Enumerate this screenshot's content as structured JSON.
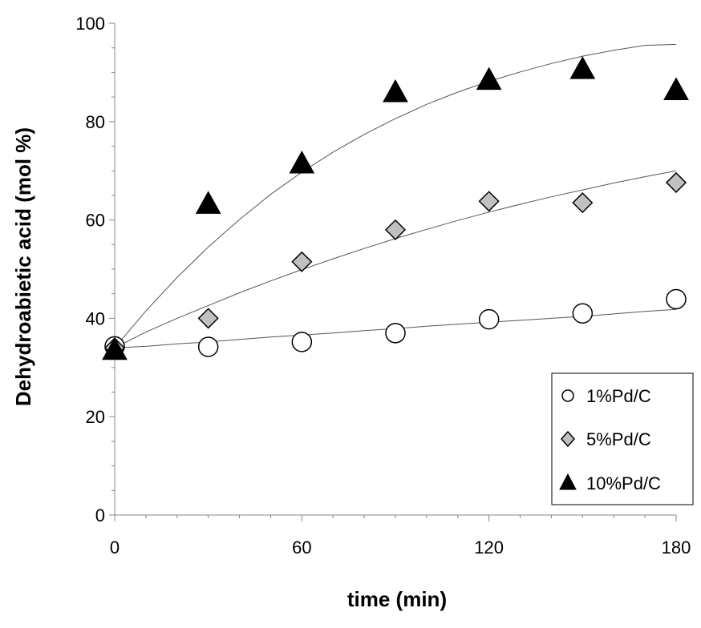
{
  "chart_data": {
    "type": "scatter",
    "xlabel": "time (min)",
    "ylabel": "Dehydroabietic acid (mol %)",
    "xlim": [
      0,
      180
    ],
    "ylim": [
      0,
      100
    ],
    "x_ticks": [
      0,
      60,
      120,
      180
    ],
    "y_ticks": [
      0,
      20,
      40,
      60,
      80,
      100
    ],
    "x_tick_labels": [
      "0",
      "60",
      "120",
      "180"
    ],
    "y_tick_labels": [
      "0",
      "20",
      "40",
      "60",
      "80",
      "100"
    ],
    "grid": false,
    "legend_position": "bottom-right",
    "series": [
      {
        "name": "1%Pd/C",
        "marker": "circle",
        "fill": "#ffffff",
        "x": [
          0,
          30,
          60,
          90,
          120,
          150,
          180
        ],
        "y": [
          34.3,
          34.2,
          35.2,
          37.0,
          39.8,
          41.0,
          43.9
        ],
        "fit_x": [
          0,
          10,
          20,
          30,
          40,
          50,
          60,
          70,
          80,
          90,
          100,
          110,
          120,
          130,
          140,
          150,
          160,
          170,
          180
        ],
        "fit_y": [
          34.0,
          34.3,
          34.8,
          35.2,
          35.7,
          36.2,
          36.6,
          37.0,
          37.5,
          37.9,
          38.4,
          38.8,
          39.2,
          39.6,
          40.0,
          40.4,
          40.9,
          41.4,
          41.8
        ]
      },
      {
        "name": "5%Pd/C",
        "marker": "diamond",
        "fill": "#c0c0c0",
        "x": [
          0,
          30,
          60,
          90,
          120,
          150,
          180
        ],
        "y": [
          34.0,
          40.0,
          51.5,
          58.0,
          63.8,
          63.5,
          67.6
        ],
        "fit_x": [
          0,
          10,
          20,
          30,
          40,
          50,
          60,
          70,
          80,
          90,
          100,
          110,
          120,
          130,
          140,
          150,
          160,
          170,
          180
        ],
        "fit_y": [
          34.0,
          37.2,
          40.0,
          42.6,
          45.2,
          47.6,
          49.9,
          52.1,
          54.2,
          56.2,
          58.1,
          59.9,
          61.6,
          63.2,
          64.7,
          66.1,
          67.5,
          68.8,
          70.0
        ]
      },
      {
        "name": "10%Pd/C",
        "marker": "triangle",
        "fill": "#000000",
        "x": [
          0,
          30,
          60,
          90,
          120,
          150,
          180
        ],
        "y": [
          33.6,
          63.3,
          71.5,
          86.0,
          88.5,
          90.7,
          86.4
        ],
        "fit_x": [
          0,
          10,
          20,
          30,
          40,
          50,
          60,
          70,
          80,
          90,
          100,
          110,
          120,
          130,
          140,
          150,
          160,
          170,
          180
        ],
        "fit_y": [
          34.0,
          41.5,
          48.3,
          54.5,
          60.1,
          65.2,
          69.7,
          73.8,
          77.4,
          80.6,
          83.5,
          86.0,
          88.2,
          90.1,
          91.8,
          93.3,
          94.5,
          95.5,
          95.7
        ]
      }
    ]
  }
}
